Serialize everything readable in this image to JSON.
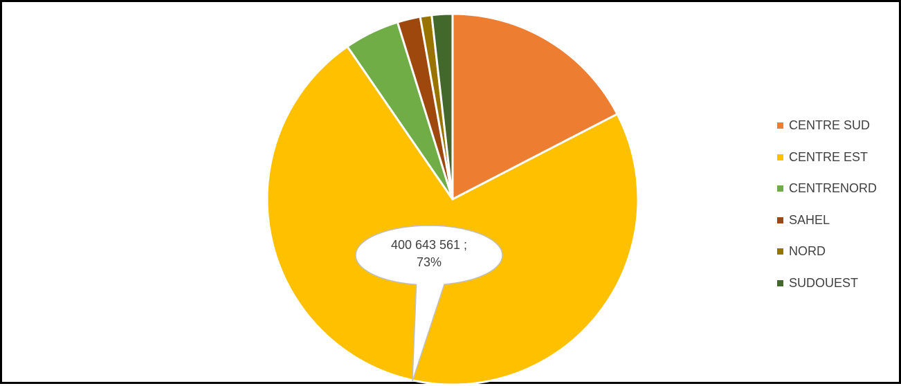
{
  "chart_data": {
    "type": "pie",
    "categories": [
      "CENTRE SUD",
      "CENTRE EST",
      "CENTRENORD",
      "SAHEL",
      "NORD",
      "SUDOUEST"
    ],
    "values": [
      17.4,
      73.0,
      4.8,
      2.0,
      1.0,
      1.8
    ],
    "colors": [
      "#ED7D31",
      "#FFC000",
      "#70AD47",
      "#9E480E",
      "#997300",
      "#43682B"
    ],
    "start_angle_deg": 0,
    "direction": "clockwise",
    "legend_position": "right",
    "data_labels": [
      {
        "category": "CENTRE EST",
        "value_text": "400 643 561 ;",
        "percent_text": "73%"
      }
    ],
    "title": ""
  }
}
